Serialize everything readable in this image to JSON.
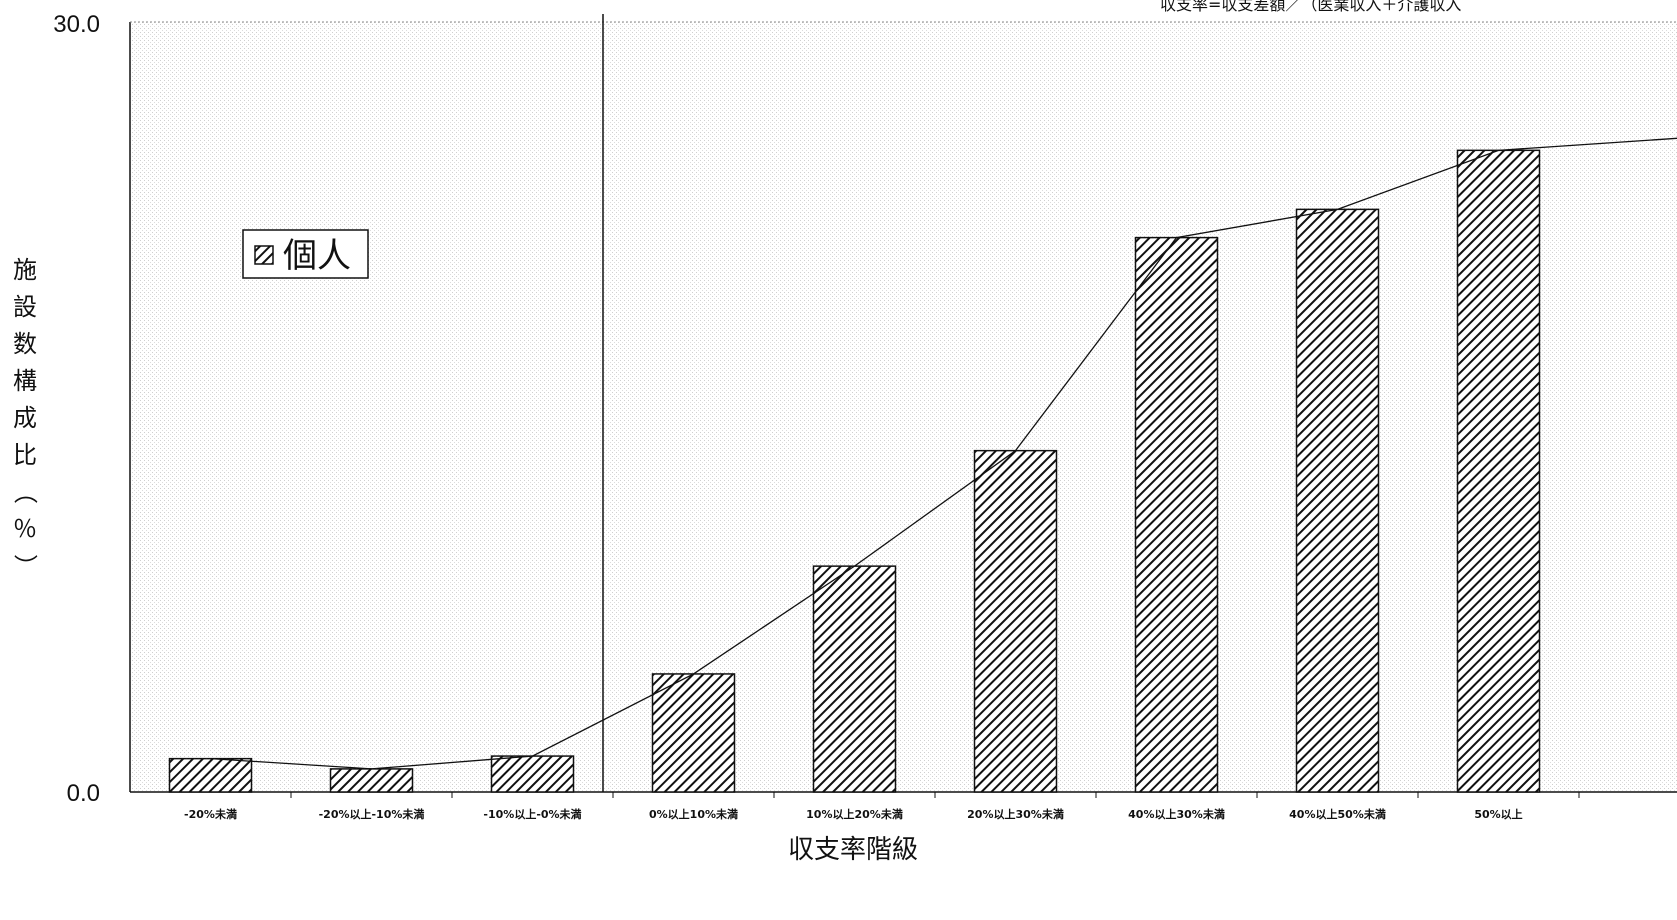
{
  "chart_data": {
    "type": "bar",
    "title": "",
    "note": "収支率=収支差額／（医業収入＋介護収入",
    "xlabel": "収支率階級",
    "ylabel": "施設数構成比（％）",
    "ylim": [
      0,
      30
    ],
    "y_tick_labels": [
      "0.0",
      "30.0"
    ],
    "categories": [
      "-20%未満",
      "-20%以上-10%未満",
      "-10%以上-0%未満",
      "0%以上10%未満",
      "10%以上20%未満",
      "20%以上30%未満",
      "40%以上30%未満",
      "40%以上50%未満",
      "50%以上"
    ],
    "series": [
      {
        "name": "個人",
        "values": [
          1.3,
          0.9,
          1.4,
          4.6,
          8.8,
          13.3,
          21.6,
          22.7,
          25.0
        ]
      }
    ],
    "connector_line": true,
    "divider_after_category_index": 2,
    "legend_position": "top-left",
    "grid": false,
    "colors": {
      "bar_fill": "#ffffff",
      "bar_hatch": "#111111",
      "background_stipple": "#d8d8d8"
    }
  }
}
